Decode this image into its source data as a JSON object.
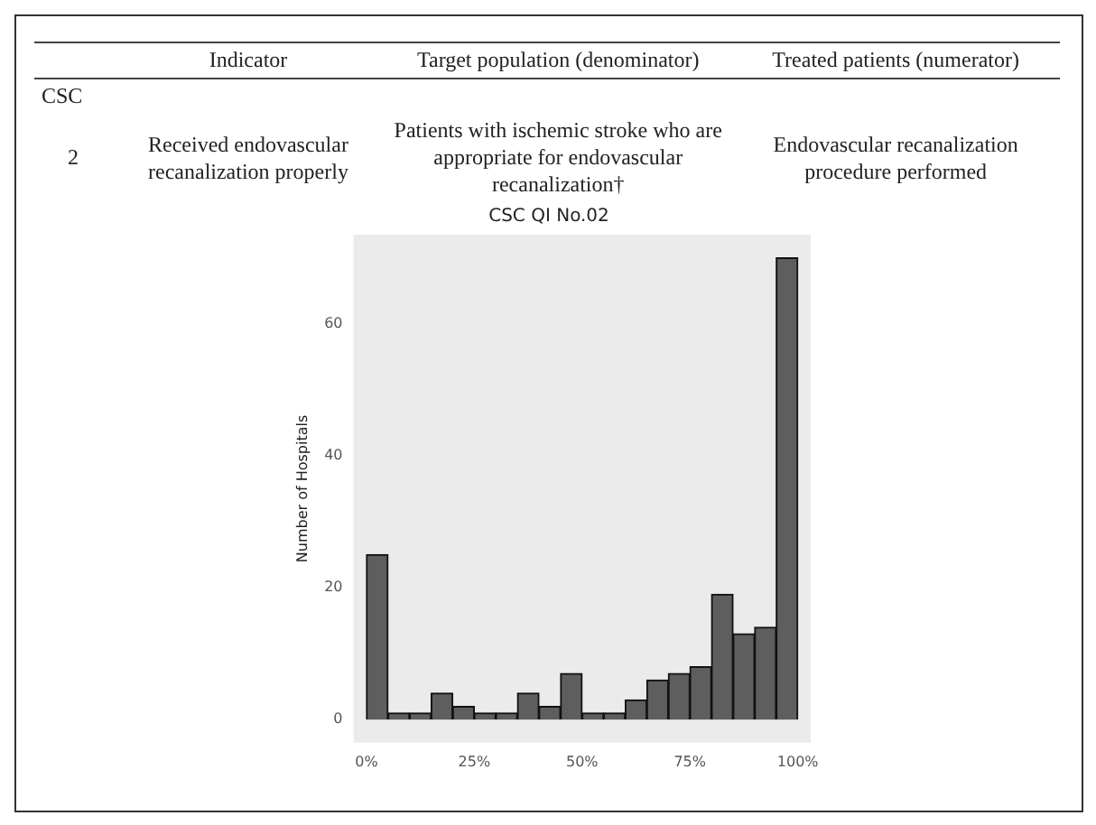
{
  "chart_data": {
    "type": "histogram",
    "title": "CSC QI No.02",
    "ylabel": "Number of Hospitals",
    "annotations": [
      "Indicator",
      "Target population (denominator)",
      "Treated patients (numerator)",
      "CSC",
      "2",
      "Received endovascular recanalization properly",
      "Patients with ischemic stroke who are appropriate for endovascular recanalization†",
      "Endovascular recanalization procedure performed"
    ],
    "bins": [
      0,
      5,
      10,
      15,
      20,
      25,
      30,
      35,
      40,
      45,
      50,
      55,
      60,
      65,
      70,
      75,
      80,
      85,
      90,
      95,
      100
    ],
    "values": [
      25,
      1,
      1,
      4,
      2,
      1,
      1,
      4,
      2,
      7,
      1,
      1,
      3,
      6,
      7,
      8,
      19,
      13,
      14,
      70
    ],
    "color": "#5e5e5e",
    "xlim": [
      -3,
      103
    ],
    "xticks": [
      {
        "value": 0,
        "label": "0%"
      },
      {
        "value": 25,
        "label": "25%"
      },
      {
        "value": 50,
        "label": "50%"
      },
      {
        "value": 75,
        "label": "75%"
      },
      {
        "value": 100,
        "label": "100%"
      }
    ],
    "ylim": [
      -3.5,
      73.5
    ],
    "yticks": [
      0,
      20,
      40,
      60
    ],
    "grid": false,
    "legend": false
  }
}
